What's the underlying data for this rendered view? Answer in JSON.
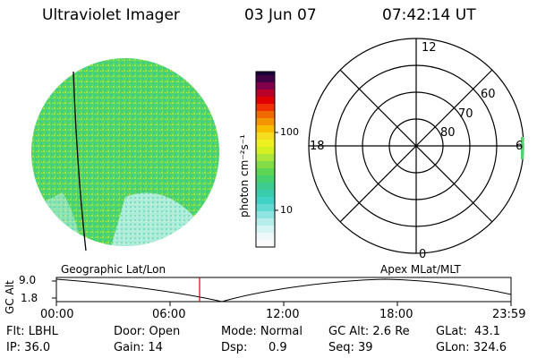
{
  "header": {
    "title": "Ultraviolet Imager",
    "date": "03 Jun 07",
    "time": "07:42:14 UT"
  },
  "colorbar": {
    "label": "photon cm⁻²s⁻¹",
    "tick_100": "100",
    "tick_10": "10"
  },
  "polar": {
    "mlt_12": "12",
    "mlt_18": "18",
    "mlt_6": "6",
    "mlt_0": "0",
    "lat_60": "60",
    "lat_70": "70",
    "lat_80": "80"
  },
  "timeline": {
    "left_label": "Geographic Lat/Lon",
    "right_label": "Apex MLat/MLT",
    "y_axis_label": "GC Alt",
    "y_max": "9.0",
    "y_min": "1.8",
    "x_ticks": [
      "00:00",
      "06:00",
      "12:00",
      "18:00",
      "23:59"
    ],
    "current_time_marker": "07:42"
  },
  "footer": {
    "flt": "Flt: LBHL",
    "ip": "IP: 36.0",
    "door": "Door: Open",
    "gain": "Gain: 14",
    "mode": "Mode: Normal",
    "dsp_label": "Dsp:",
    "dsp_value": "0.9",
    "gc_alt": "GC Alt: 2.6 Re",
    "seq": "Seq: 39",
    "glat": "GLat:  43.1",
    "glon": "GLon: 324.6"
  },
  "colors": {
    "disk_main": "#4ed468",
    "disk_speckle": "#9be34a",
    "disk_low": "#aee9e6",
    "marker": "#d40000"
  }
}
